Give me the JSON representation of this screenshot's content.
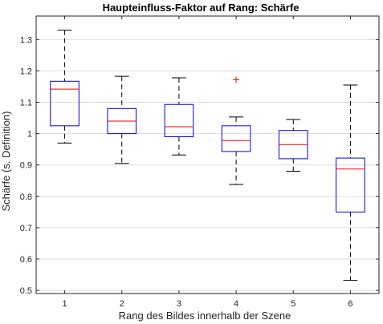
{
  "chart_data": {
    "type": "boxplot",
    "title": "Haupteinfluss-Faktor auf Rang: Schärfe",
    "xlabel": "Rang des Bildes innerhalb der Szene",
    "ylabel": "Schärfe (s. Definition)",
    "categories": [
      "1",
      "2",
      "3",
      "4",
      "5",
      "6"
    ],
    "yticks": [
      "0.5",
      "0.6",
      "0.7",
      "0.8",
      "0.9",
      "1",
      "1.1",
      "1.2",
      "1.3"
    ],
    "ylim": [
      0.49,
      1.375
    ],
    "grid": "horizontal",
    "boxes": [
      {
        "category": "1",
        "whisker_low": 0.97,
        "q1": 1.025,
        "median": 1.142,
        "q3": 1.167,
        "whisker_high": 1.33,
        "outliers": []
      },
      {
        "category": "2",
        "whisker_low": 0.905,
        "q1": 1.0,
        "median": 1.04,
        "q3": 1.08,
        "whisker_high": 1.183,
        "outliers": []
      },
      {
        "category": "3",
        "whisker_low": 0.932,
        "q1": 0.99,
        "median": 1.022,
        "q3": 1.093,
        "whisker_high": 1.178,
        "outliers": []
      },
      {
        "category": "4",
        "whisker_low": 0.838,
        "q1": 0.943,
        "median": 0.978,
        "q3": 1.025,
        "whisker_high": 1.053,
        "outliers": [
          1.172
        ]
      },
      {
        "category": "5",
        "whisker_low": 0.88,
        "q1": 0.92,
        "median": 0.965,
        "q3": 1.01,
        "whisker_high": 1.045,
        "outliers": []
      },
      {
        "category": "6",
        "whisker_low": 0.532,
        "q1": 0.75,
        "median": 0.887,
        "q3": 0.922,
        "whisker_high": 1.155,
        "outliers": []
      }
    ],
    "colors": {
      "box": "#0000ff",
      "median": "#ff0000",
      "whisker": "#000000",
      "outlier": "#ff0000",
      "grid": "#dcdcdc",
      "axis": "#262626"
    }
  }
}
